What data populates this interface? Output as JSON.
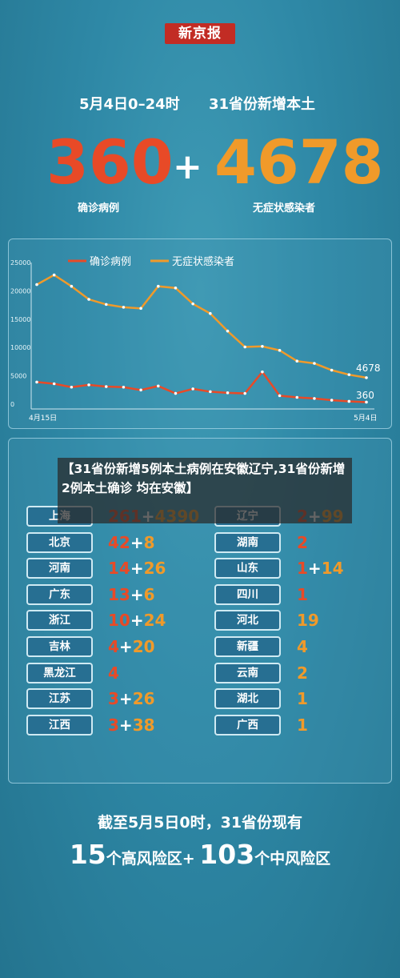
{
  "logo": "新京报",
  "header": {
    "date_range": "5月4日0–24时",
    "scope": "31省份新增本土",
    "confirmed": "360",
    "asymptomatic": "4678",
    "plus": "+",
    "confirmed_label": "确诊病例",
    "asymptomatic_label": "无症状感染者"
  },
  "colors": {
    "confirmed": "#e84a27",
    "asymptomatic": "#f09a2a",
    "background": "#2e88a6",
    "logo_red": "#c22c24"
  },
  "chart_data": {
    "type": "line",
    "x_labels": [
      "4月15日",
      "5月4日"
    ],
    "yticks": [
      "25000",
      "20000",
      "15000",
      "10000",
      "5000",
      "0"
    ],
    "ylim": [
      0,
      25000
    ],
    "grid": false,
    "legend": "top",
    "series": [
      {
        "name": "确诊病例",
        "values": [
          3900,
          3600,
          3000,
          3400,
          3100,
          3000,
          2500,
          3200,
          1900,
          2700,
          2200,
          2000,
          1900,
          5700,
          1500,
          1200,
          1000,
          700,
          500,
          360
        ]
      },
      {
        "name": "无症状感染者",
        "values": [
          21100,
          22800,
          20800,
          18500,
          17600,
          17100,
          16900,
          20800,
          20500,
          17700,
          16000,
          12900,
          10100,
          10200,
          9500,
          7600,
          7200,
          6000,
          5200,
          4678
        ]
      }
    ],
    "end_labels": {
      "asymptomatic": "4678",
      "confirmed": "360"
    }
  },
  "overlay": {
    "text": "【31省份新增5例本土病例在安徽辽宁,31省份新增2例本土确诊 均在安徽】"
  },
  "provinces": {
    "left": [
      {
        "name": "上海",
        "confirmed": "261",
        "asymptomatic": "4390"
      },
      {
        "name": "北京",
        "confirmed": "42",
        "asymptomatic": "8"
      },
      {
        "name": "河南",
        "confirmed": "14",
        "asymptomatic": "26"
      },
      {
        "name": "广东",
        "confirmed": "13",
        "asymptomatic": "6"
      },
      {
        "name": "浙江",
        "confirmed": "10",
        "asymptomatic": "24"
      },
      {
        "name": "吉林",
        "confirmed": "4",
        "asymptomatic": "20"
      },
      {
        "name": "黑龙江",
        "confirmed": "4",
        "asymptomatic": ""
      },
      {
        "name": "江苏",
        "confirmed": "3",
        "asymptomatic": "26"
      },
      {
        "name": "江西",
        "confirmed": "3",
        "asymptomatic": "38"
      }
    ],
    "right": [
      {
        "name": "辽宁",
        "confirmed": "2",
        "asymptomatic": "99"
      },
      {
        "name": "湖南",
        "confirmed": "2",
        "asymptomatic": ""
      },
      {
        "name": "山东",
        "confirmed": "1",
        "asymptomatic": "14"
      },
      {
        "name": "四川",
        "confirmed": "1",
        "asymptomatic": ""
      },
      {
        "name": "河北",
        "confirmed": "",
        "asymptomatic": "19"
      },
      {
        "name": "新疆",
        "confirmed": "",
        "asymptomatic": "4"
      },
      {
        "name": "云南",
        "confirmed": "",
        "asymptomatic": "2"
      },
      {
        "name": "湖北",
        "confirmed": "",
        "asymptomatic": "1"
      },
      {
        "name": "广西",
        "confirmed": "",
        "asymptomatic": "1"
      }
    ]
  },
  "footer": {
    "line1": "截至5月5日0时，31省份现有",
    "high_risk_num": "15",
    "high_risk_text": "个高风险区+",
    "mid_risk_num": "103",
    "mid_risk_text": "个中风险区"
  }
}
